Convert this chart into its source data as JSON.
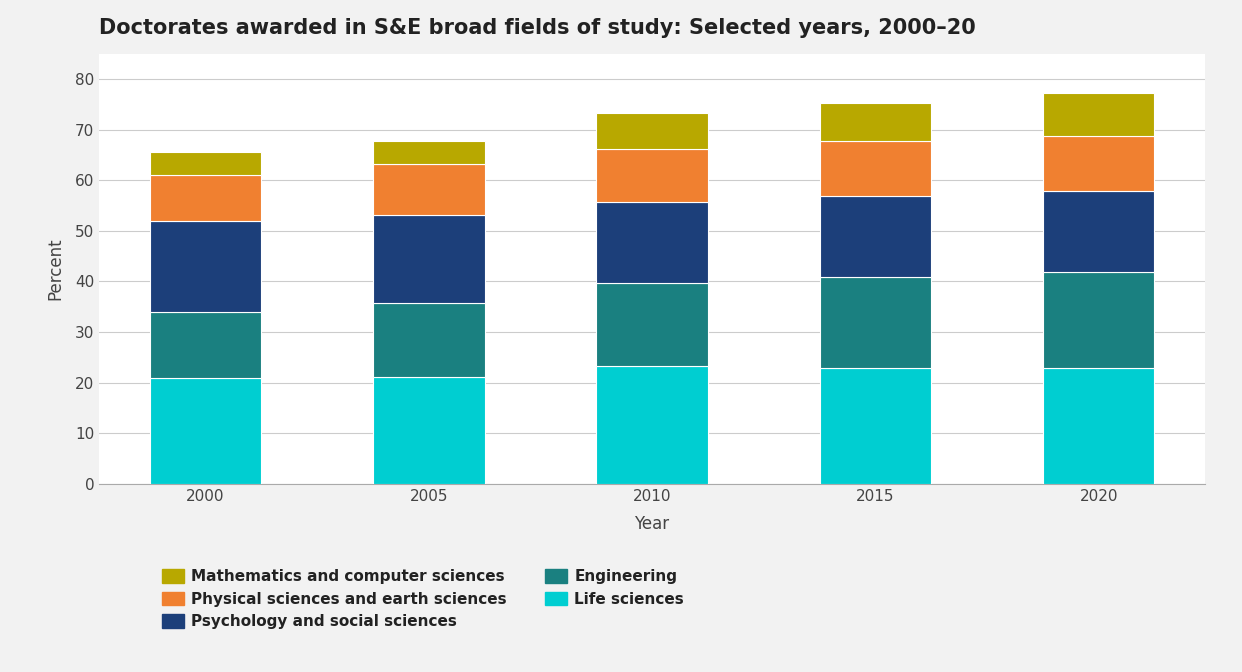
{
  "years": [
    "2000",
    "2005",
    "2010",
    "2015",
    "2020"
  ],
  "series": [
    {
      "label": "Life sciences",
      "color": "#00CED1",
      "values": [
        21.0,
        21.2,
        23.2,
        22.8,
        22.8
      ]
    },
    {
      "label": "Engineering",
      "color": "#1A8080",
      "values": [
        13.0,
        14.5,
        16.5,
        18.0,
        19.0
      ]
    },
    {
      "label": "Psychology and social sciences",
      "color": "#1C3F7A",
      "values": [
        18.0,
        17.5,
        16.0,
        16.0,
        16.0
      ]
    },
    {
      "label": "Physical sciences and earth sciences",
      "color": "#F08030",
      "values": [
        9.0,
        10.0,
        10.5,
        11.0,
        11.0
      ]
    },
    {
      "label": "Mathematics and computer sciences",
      "color": "#B8A800",
      "values": [
        4.5,
        4.5,
        7.0,
        7.5,
        8.5
      ]
    }
  ],
  "title": "Doctorates awarded in S&E broad fields of study: Selected years, 2000–20",
  "xlabel": "Year",
  "ylabel": "Percent",
  "ylim": [
    0,
    85
  ],
  "yticks": [
    0,
    10,
    20,
    30,
    40,
    50,
    60,
    70,
    80
  ],
  "figure_bg": "#f2f2f2",
  "plot_bg": "#ffffff",
  "bar_width": 0.5,
  "title_fontsize": 15,
  "axis_fontsize": 12,
  "tick_fontsize": 11,
  "legend_fontsize": 11
}
